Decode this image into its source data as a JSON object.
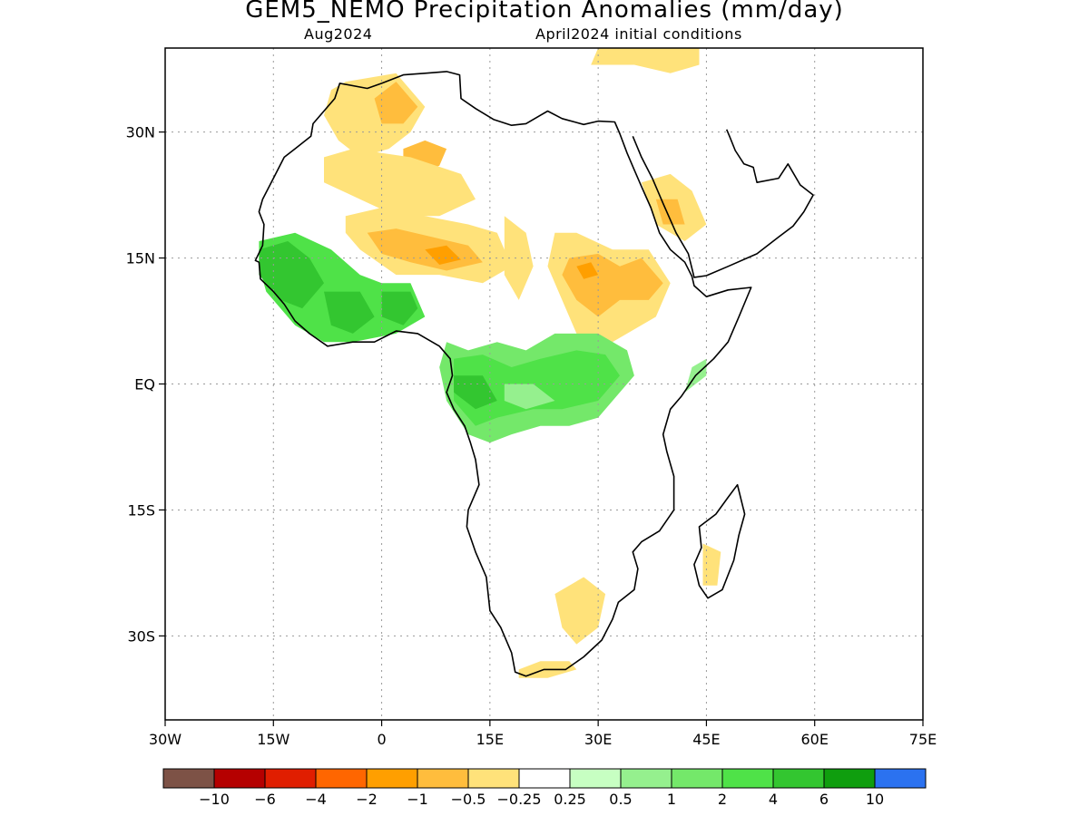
{
  "title": "GEM5_NEMO Precipitation Anomalies (mm/day)",
  "subtitle_left": "Aug2024",
  "subtitle_right": "April2024 initial conditions",
  "map": {
    "extent": {
      "lon": [
        -30,
        75
      ],
      "lat": [
        -40,
        40
      ]
    },
    "lon_ticks": [
      {
        "value": -30,
        "label": "30W"
      },
      {
        "value": -15,
        "label": "15W"
      },
      {
        "value": 0,
        "label": "0"
      },
      {
        "value": 15,
        "label": "15E"
      },
      {
        "value": 30,
        "label": "30E"
      },
      {
        "value": 45,
        "label": "45E"
      },
      {
        "value": 60,
        "label": "60E"
      },
      {
        "value": 75,
        "label": "75E"
      }
    ],
    "lat_ticks": [
      {
        "value": 30,
        "label": "30N"
      },
      {
        "value": 15,
        "label": "15N"
      },
      {
        "value": 0,
        "label": "EQ"
      },
      {
        "value": -15,
        "label": "15S"
      },
      {
        "value": -30,
        "label": "30S"
      }
    ],
    "grid": "dotted",
    "anomaly_regions": [
      {
        "category": 6,
        "lonlat": [
          [
            -7,
            35
          ],
          [
            -5,
            36
          ],
          [
            2,
            37
          ],
          [
            6,
            33
          ],
          [
            4,
            30
          ],
          [
            1,
            28
          ],
          [
            -3,
            27
          ],
          [
            -6,
            29
          ],
          [
            -8,
            32
          ]
        ]
      },
      {
        "category": 5,
        "lonlat": [
          [
            -1,
            34
          ],
          [
            2,
            36
          ],
          [
            5,
            33
          ],
          [
            3,
            31
          ],
          [
            0,
            31
          ]
        ]
      },
      {
        "category": 5,
        "lonlat": [
          [
            3,
            28
          ],
          [
            6,
            29
          ],
          [
            9,
            28
          ],
          [
            8,
            26
          ],
          [
            5,
            25
          ],
          [
            3,
            26
          ]
        ]
      },
      {
        "category": 6,
        "lonlat": [
          [
            -8,
            27
          ],
          [
            -4,
            28
          ],
          [
            4,
            27
          ],
          [
            11,
            25
          ],
          [
            13,
            22
          ],
          [
            8,
            20
          ],
          [
            2,
            20
          ],
          [
            -3,
            22
          ],
          [
            -8,
            24
          ]
        ]
      },
      {
        "category": 6,
        "lonlat": [
          [
            -5,
            20
          ],
          [
            0,
            21
          ],
          [
            6,
            20
          ],
          [
            12,
            19
          ],
          [
            16,
            18
          ],
          [
            18,
            14
          ],
          [
            14,
            12
          ],
          [
            8,
            13
          ],
          [
            2,
            13
          ],
          [
            -3,
            16
          ],
          [
            -5,
            18
          ]
        ]
      },
      {
        "category": 5,
        "lonlat": [
          [
            -2,
            18
          ],
          [
            2,
            18.5
          ],
          [
            7,
            17.5
          ],
          [
            12,
            16.5
          ],
          [
            14,
            14.5
          ],
          [
            9,
            13.5
          ],
          [
            4,
            14.5
          ],
          [
            0,
            15.5
          ]
        ]
      },
      {
        "category": 4,
        "lonlat": [
          [
            6,
            16
          ],
          [
            9,
            16.5
          ],
          [
            11,
            14.8
          ],
          [
            8,
            14.2
          ]
        ]
      },
      {
        "category": 6,
        "lonlat": [
          [
            17,
            20
          ],
          [
            20,
            18
          ],
          [
            21,
            14
          ],
          [
            19,
            10
          ],
          [
            17,
            13
          ]
        ]
      },
      {
        "category": 6,
        "lonlat": [
          [
            24,
            18
          ],
          [
            27,
            18
          ],
          [
            32,
            16
          ],
          [
            37,
            16
          ],
          [
            40,
            12
          ],
          [
            38,
            8
          ],
          [
            34,
            6
          ],
          [
            30,
            4
          ],
          [
            27,
            6
          ],
          [
            25,
            10
          ],
          [
            23,
            14
          ]
        ]
      },
      {
        "category": 5,
        "lonlat": [
          [
            26,
            15
          ],
          [
            30,
            15.5
          ],
          [
            33,
            14
          ],
          [
            36,
            15
          ],
          [
            39,
            12
          ],
          [
            37,
            10
          ],
          [
            33,
            10
          ],
          [
            30,
            8
          ],
          [
            27,
            10
          ],
          [
            25,
            13
          ]
        ]
      },
      {
        "category": 4,
        "lonlat": [
          [
            27,
            14
          ],
          [
            29,
            14.5
          ],
          [
            30,
            13
          ],
          [
            28,
            12.5
          ]
        ]
      },
      {
        "category": 6,
        "lonlat": [
          [
            36,
            24
          ],
          [
            40,
            25
          ],
          [
            43,
            23
          ],
          [
            45,
            19
          ],
          [
            42,
            17
          ],
          [
            38,
            19
          ]
        ]
      },
      {
        "category": 5,
        "lonlat": [
          [
            38,
            22
          ],
          [
            41,
            22
          ],
          [
            42,
            19
          ],
          [
            39,
            19
          ]
        ]
      },
      {
        "category": 6,
        "lonlat": [
          [
            29,
            38
          ],
          [
            35,
            38
          ],
          [
            40,
            37
          ],
          [
            44,
            38
          ],
          [
            44,
            40
          ],
          [
            30,
            40
          ]
        ]
      },
      {
        "category": 6,
        "lonlat": [
          [
            24,
            -25
          ],
          [
            28,
            -23
          ],
          [
            31,
            -25
          ],
          [
            30,
            -29
          ],
          [
            27,
            -31
          ],
          [
            25,
            -29
          ]
        ]
      },
      {
        "category": 6,
        "lonlat": [
          [
            19,
            -34
          ],
          [
            22,
            -33
          ],
          [
            26,
            -33
          ],
          [
            27,
            -34
          ],
          [
            23,
            -35
          ],
          [
            19,
            -35
          ]
        ]
      },
      {
        "category": 6,
        "lonlat": [
          [
            44.5,
            -19
          ],
          [
            47,
            -20
          ],
          [
            46.5,
            -24
          ],
          [
            44.5,
            -24
          ]
        ]
      },
      {
        "category": 11,
        "lonlat": [
          [
            -17,
            17
          ],
          [
            -12,
            18
          ],
          [
            -7,
            16
          ],
          [
            -3,
            13
          ],
          [
            0,
            12
          ],
          [
            4,
            12
          ],
          [
            6,
            8
          ],
          [
            2,
            6
          ],
          [
            -4,
            5
          ],
          [
            -8,
            5
          ],
          [
            -12,
            7
          ],
          [
            -16,
            11
          ],
          [
            -17,
            14
          ]
        ]
      },
      {
        "category": 12,
        "lonlat": [
          [
            -17,
            16
          ],
          [
            -13,
            17
          ],
          [
            -10,
            15
          ],
          [
            -8,
            12
          ],
          [
            -11,
            9
          ],
          [
            -14,
            10
          ],
          [
            -17,
            13
          ]
        ]
      },
      {
        "category": 12,
        "lonlat": [
          [
            -8,
            11
          ],
          [
            -3,
            11
          ],
          [
            -1,
            8
          ],
          [
            -4,
            6
          ],
          [
            -7,
            7
          ]
        ]
      },
      {
        "category": 12,
        "lonlat": [
          [
            0,
            11
          ],
          [
            4,
            11
          ],
          [
            5,
            9
          ],
          [
            3,
            7
          ],
          [
            0,
            8
          ]
        ]
      },
      {
        "category": 10,
        "lonlat": [
          [
            9,
            5
          ],
          [
            12,
            4
          ],
          [
            16,
            5
          ],
          [
            20,
            4
          ],
          [
            24,
            6
          ],
          [
            30,
            6
          ],
          [
            34,
            4
          ],
          [
            35,
            1
          ],
          [
            33,
            -1
          ],
          [
            30,
            -4
          ],
          [
            26,
            -5
          ],
          [
            22,
            -5
          ],
          [
            18,
            -6
          ],
          [
            15,
            -7
          ],
          [
            12,
            -6
          ],
          [
            9,
            -2
          ],
          [
            8,
            2
          ]
        ]
      },
      {
        "category": 11,
        "lonlat": [
          [
            10,
            3
          ],
          [
            14,
            3.5
          ],
          [
            18,
            2
          ],
          [
            22,
            3
          ],
          [
            27,
            4
          ],
          [
            31,
            3.5
          ],
          [
            33,
            1
          ],
          [
            30,
            -2
          ],
          [
            25,
            -3
          ],
          [
            21,
            -3
          ],
          [
            16,
            -4
          ],
          [
            13,
            -5
          ],
          [
            10,
            -2
          ]
        ]
      },
      {
        "category": 12,
        "lonlat": [
          [
            10,
            1
          ],
          [
            14,
            1
          ],
          [
            16,
            -2
          ],
          [
            13,
            -3
          ],
          [
            10,
            -1
          ]
        ]
      },
      {
        "category": 9,
        "lonlat": [
          [
            17,
            0
          ],
          [
            21,
            0
          ],
          [
            24,
            -2
          ],
          [
            20,
            -3
          ],
          [
            17,
            -2
          ]
        ]
      },
      {
        "category": 9,
        "lonlat": [
          [
            42,
            -1
          ],
          [
            45,
            1
          ],
          [
            45,
            3
          ],
          [
            43,
            2
          ]
        ]
      }
    ],
    "coastline_lonlat": [
      [
        -17,
        14.5
      ],
      [
        -16.8,
        12.5
      ],
      [
        -15,
        11
      ],
      [
        -13.5,
        9.5
      ],
      [
        -12,
        7.5
      ],
      [
        -10,
        6
      ],
      [
        -7.5,
        4.5
      ],
      [
        -4,
        5
      ],
      [
        -1,
        5
      ],
      [
        2,
        6.3
      ],
      [
        5,
        6
      ],
      [
        8,
        4.5
      ],
      [
        9.5,
        3
      ],
      [
        9.8,
        1
      ],
      [
        9,
        -1
      ],
      [
        10,
        -3
      ],
      [
        11.5,
        -5
      ],
      [
        12.3,
        -7
      ],
      [
        13,
        -9
      ],
      [
        13.5,
        -12
      ],
      [
        12,
        -15
      ],
      [
        11.8,
        -17
      ],
      [
        13,
        -20
      ],
      [
        14.5,
        -23
      ],
      [
        15,
        -27
      ],
      [
        16.5,
        -29
      ],
      [
        18,
        -32
      ],
      [
        18.5,
        -34.3
      ],
      [
        20,
        -34.8
      ],
      [
        22.5,
        -34
      ],
      [
        25.5,
        -34
      ],
      [
        28,
        -32.5
      ],
      [
        30.5,
        -30.5
      ],
      [
        32,
        -28
      ],
      [
        32.8,
        -26
      ],
      [
        35,
        -24.5
      ],
      [
        35.5,
        -22
      ],
      [
        34.8,
        -20
      ],
      [
        36,
        -18.8
      ],
      [
        38.5,
        -17.5
      ],
      [
        40.5,
        -15
      ],
      [
        40.5,
        -11
      ],
      [
        39.5,
        -8
      ],
      [
        39,
        -6
      ],
      [
        40,
        -3
      ],
      [
        41.5,
        -1.5
      ],
      [
        43.5,
        1
      ],
      [
        46,
        3
      ],
      [
        48,
        5
      ],
      [
        49.5,
        8
      ],
      [
        51.2,
        11.5
      ],
      [
        48,
        11.2
      ],
      [
        45,
        10.4
      ],
      [
        43.3,
        11.7
      ],
      [
        43,
        12.8
      ],
      [
        42,
        14.5
      ],
      [
        40,
        16
      ],
      [
        38.5,
        18
      ],
      [
        37.3,
        21
      ],
      [
        36,
        23.5
      ],
      [
        35,
        25.5
      ],
      [
        34,
        27.5
      ],
      [
        33,
        29.8
      ],
      [
        32.3,
        31.2
      ],
      [
        30,
        31.3
      ],
      [
        28,
        30.9
      ],
      [
        25,
        31.6
      ],
      [
        23,
        32.5
      ],
      [
        20,
        31
      ],
      [
        18,
        30.8
      ],
      [
        15.5,
        31.5
      ],
      [
        13,
        32.8
      ],
      [
        11,
        34
      ],
      [
        10.8,
        36.8
      ],
      [
        9,
        37.2
      ],
      [
        6,
        37
      ],
      [
        3,
        36.8
      ],
      [
        0,
        35.8
      ],
      [
        -2,
        35.2
      ],
      [
        -5.8,
        35.8
      ],
      [
        -6.5,
        34
      ],
      [
        -9.5,
        31
      ],
      [
        -9.8,
        29.5
      ],
      [
        -12,
        28
      ],
      [
        -13.5,
        27
      ],
      [
        -15,
        24.5
      ],
      [
        -16.5,
        22
      ],
      [
        -17,
        20.5
      ],
      [
        -16.3,
        19
      ],
      [
        -16.5,
        16.5
      ],
      [
        -17.5,
        14.7
      ],
      [
        -17,
        14.5
      ]
    ],
    "madagascar_lonlat": [
      [
        49.3,
        -12
      ],
      [
        50.3,
        -15.5
      ],
      [
        49.5,
        -18
      ],
      [
        48.8,
        -21
      ],
      [
        47.2,
        -24.5
      ],
      [
        45.2,
        -25.5
      ],
      [
        44,
        -24
      ],
      [
        43.3,
        -21.5
      ],
      [
        44.3,
        -19.5
      ],
      [
        44,
        -17
      ],
      [
        46.3,
        -15.5
      ],
      [
        48,
        -13.5
      ],
      [
        49.3,
        -12
      ]
    ],
    "arabia_lonlat": [
      [
        34.8,
        29.5
      ],
      [
        36,
        27
      ],
      [
        37.5,
        24.5
      ],
      [
        39,
        21.5
      ],
      [
        40.8,
        18
      ],
      [
        42.5,
        15.5
      ],
      [
        43.3,
        12.7
      ],
      [
        45,
        12.9
      ],
      [
        48,
        14
      ],
      [
        52,
        15.5
      ],
      [
        55,
        17.5
      ],
      [
        57,
        18.8
      ],
      [
        58.5,
        20.5
      ],
      [
        59.8,
        22.5
      ],
      [
        58,
        23.7
      ],
      [
        56.3,
        26.2
      ],
      [
        55,
        24.5
      ],
      [
        52,
        24
      ],
      [
        51.5,
        25.8
      ],
      [
        50.2,
        26.2
      ],
      [
        49,
        27.8
      ],
      [
        48.2,
        29.5
      ],
      [
        47.8,
        30.3
      ]
    ],
    "colorbar": {
      "labels": [
        "−10",
        "−6",
        "−4",
        "−2",
        "−1",
        "−0.5",
        "−0.25",
        "0.25",
        "0.5",
        "1",
        "2",
        "4",
        "6",
        "10"
      ],
      "colors": [
        "#7d5246",
        "#b50000",
        "#e01e00",
        "#ff6600",
        "#ff9f00",
        "#ffbd3d",
        "#ffe27a",
        "#ffffff",
        "#c7ffc2",
        "#95f08e",
        "#74e86a",
        "#4fe248",
        "#33c630",
        "#0f9e0e",
        "#2b72f0"
      ]
    }
  }
}
